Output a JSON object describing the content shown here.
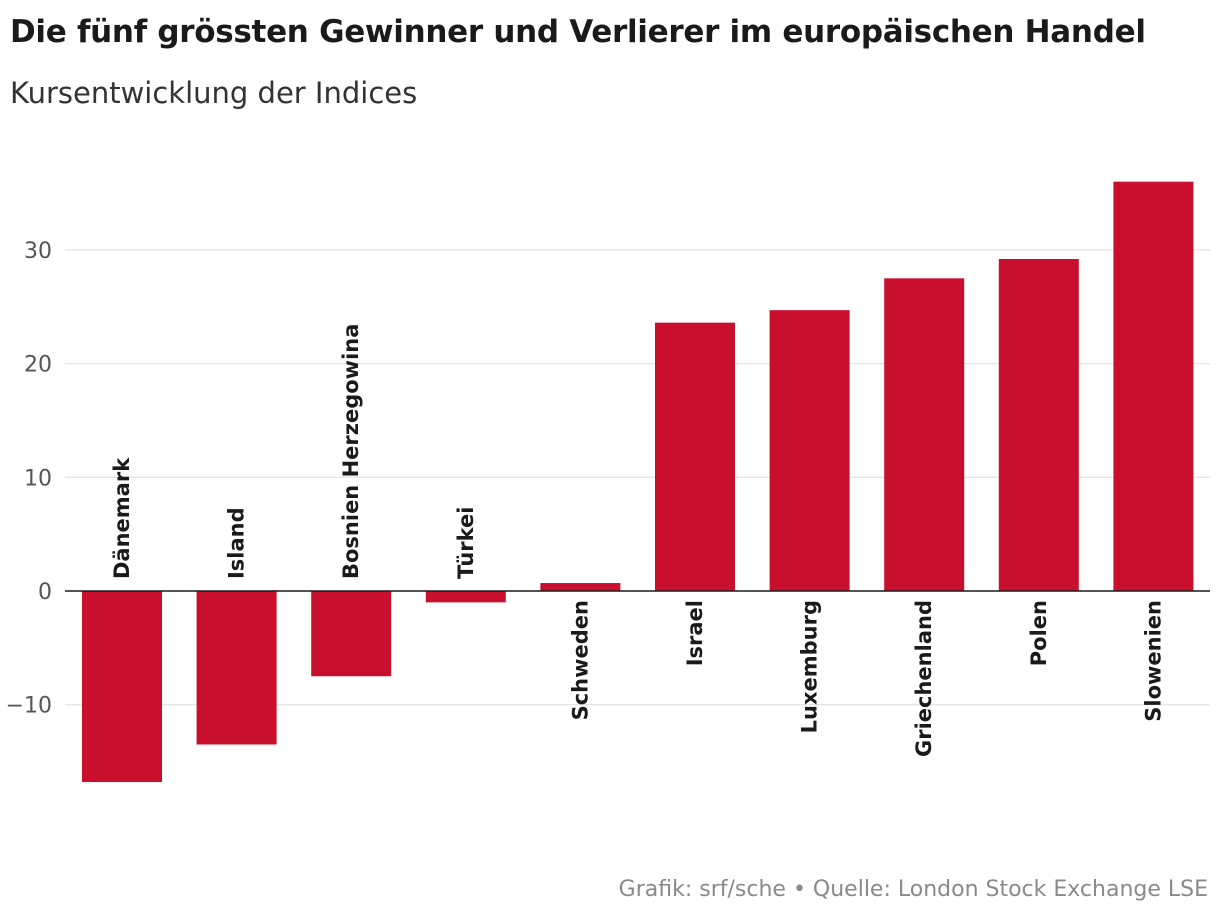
{
  "chart_data": {
    "type": "bar",
    "title": "Die fünf grössten Gewinner und Verlierer im europäischen Handel",
    "subtitle": "Kursentwicklung der Indices",
    "source": "Grafik: srf/sche • Quelle: London Stock Exchange LSE",
    "xlabel": "",
    "ylabel": "",
    "ylim": [
      -17,
      36
    ],
    "yticks": [
      30,
      20,
      10,
      0,
      -10
    ],
    "ytick_labels": [
      "30",
      "20",
      "10",
      "0",
      "−10"
    ],
    "grid": true,
    "bar_color": "#c8102e",
    "categories": [
      "Dänemark",
      "Island",
      "Bosnien Herzegowina",
      "Türkei",
      "Schweden",
      "Israel",
      "Luxemburg",
      "Griechenland",
      "Polen",
      "Slowenien"
    ],
    "values": [
      -16.8,
      -13.5,
      -7.5,
      -1.0,
      0.7,
      23.6,
      24.7,
      27.5,
      29.2,
      36.0
    ]
  }
}
